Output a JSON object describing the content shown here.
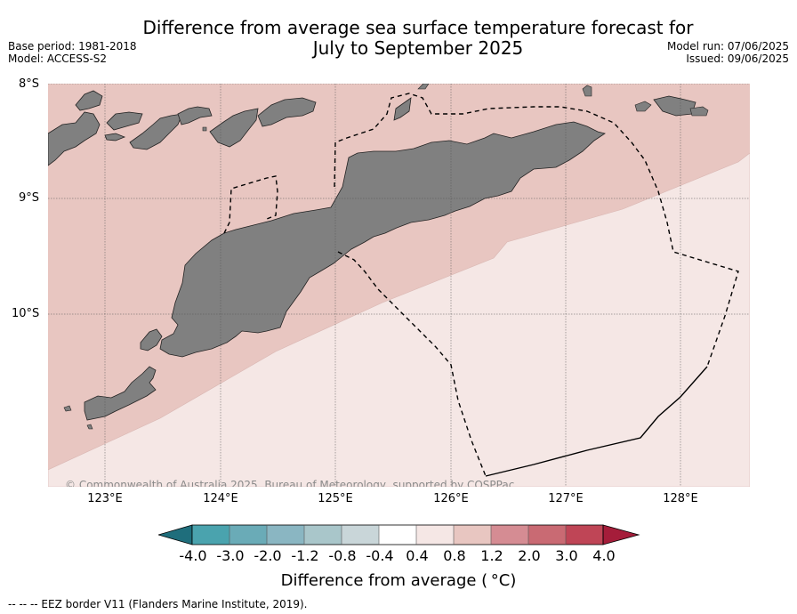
{
  "title": {
    "line1": "Difference from average sea surface temperature forecast for",
    "line2": "July to September 2025"
  },
  "meta": {
    "base_period": "Base period: 1981-2018",
    "model": "Model: ACCESS-S2",
    "model_run": "Model run: 07/06/2025",
    "issued": "Issued: 09/06/2025"
  },
  "map": {
    "lat_labels": [
      "8°S",
      "9°S",
      "10°S"
    ],
    "lon_labels": [
      "123°E",
      "124°E",
      "125°E",
      "126°E",
      "127°E",
      "128°E"
    ],
    "copyright": "© Commonwealth of Australia 2025, Bureau of Meteorology, supported by COSPPac",
    "colors": {
      "ocean_0p8_1p2": "#e8c6c1",
      "ocean_0p4_0p8": "#f5e7e5",
      "land": "#808080",
      "gridline": "#555555",
      "eez_border": "#000000"
    }
  },
  "colorbar": {
    "tick_labels": [
      "-4.0",
      "-3.0",
      "-2.0",
      "-1.2",
      "-0.8",
      "-0.4",
      "0.4",
      "0.8",
      "1.2",
      "2.0",
      "3.0",
      "4.0"
    ],
    "bin_colors": [
      "#1f6e7c",
      "#4aa3ae",
      "#6aabb7",
      "#8ab6c2",
      "#a9c6ca",
      "#c9d6d9",
      "#ffffff",
      "#f5e7e5",
      "#e8c6c1",
      "#d58c93",
      "#c96a73",
      "#bf4556",
      "#a51d3a"
    ],
    "label": "Difference from average ( °C)"
  },
  "eez_note": "--  --  -- EEZ border V11 (Flanders Marine Institute, 2019)."
}
